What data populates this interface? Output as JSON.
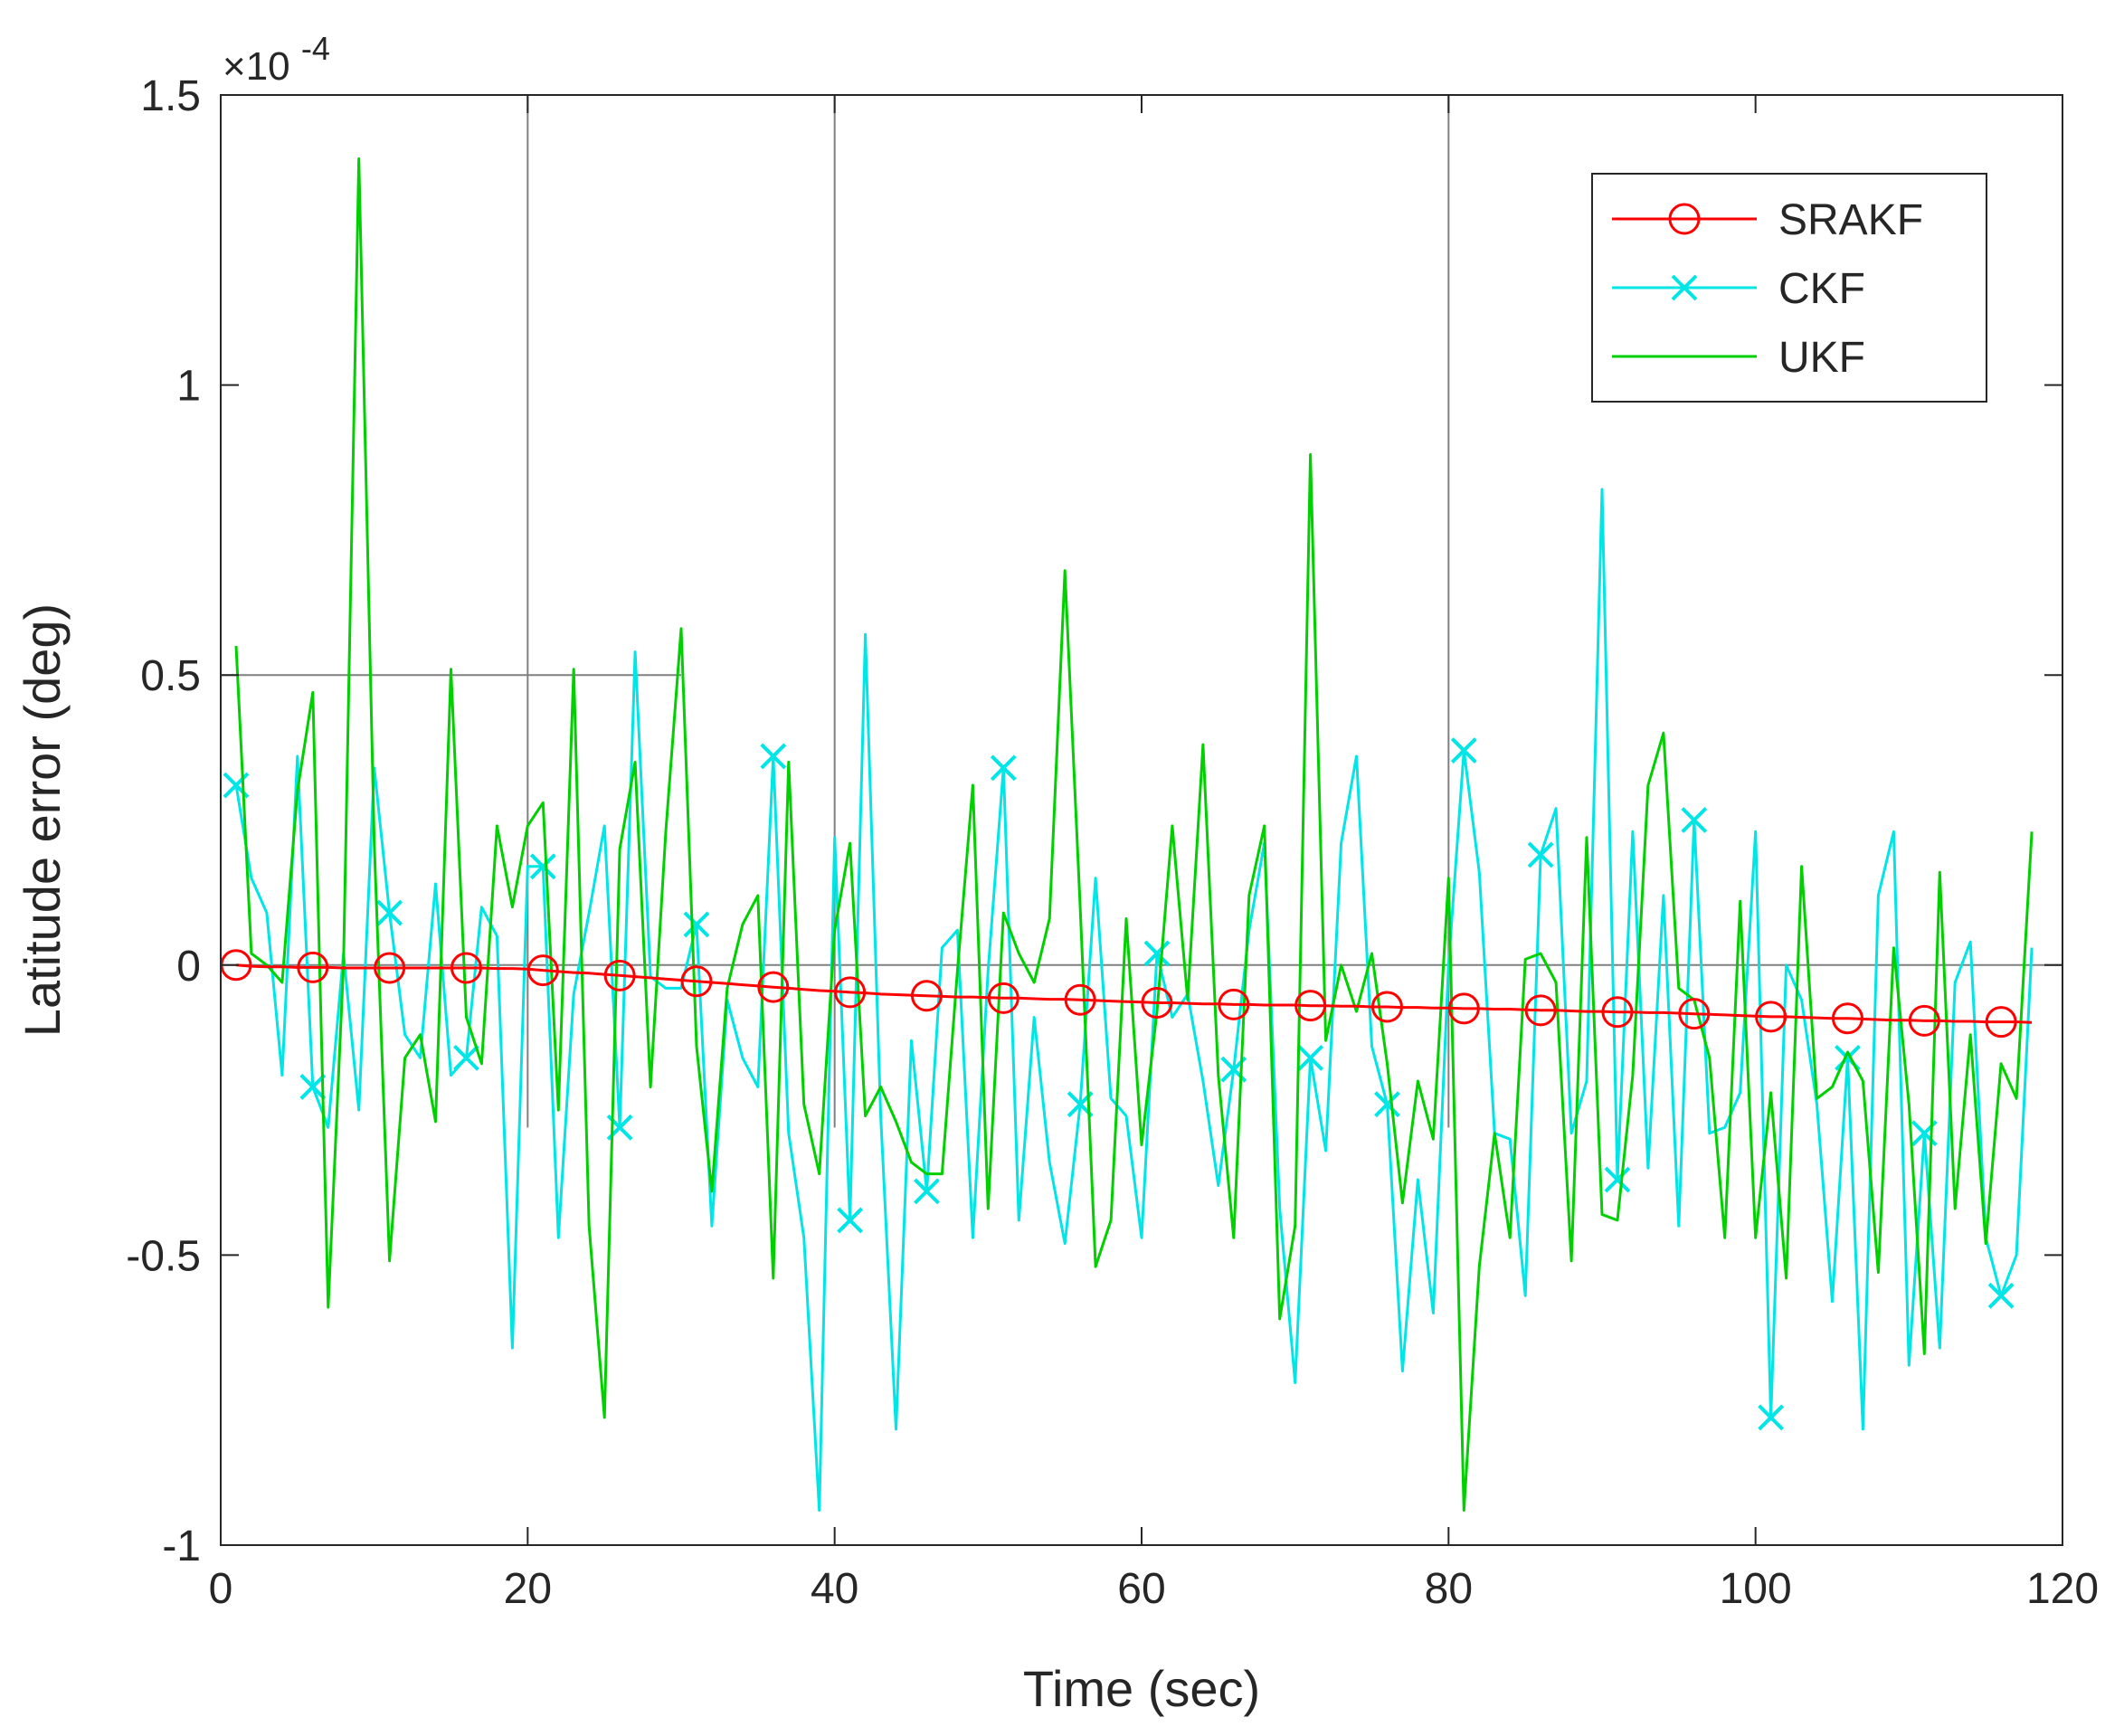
{
  "chart_data": {
    "type": "line",
    "title": "",
    "xlabel": "Time (sec)",
    "ylabel": "Latitude error (deg)",
    "y_exponent_label": "×10",
    "y_exponent_power": "-4",
    "xlim": [
      0,
      120
    ],
    "ylim": [
      -1,
      1.5
    ],
    "xticks": [
      0,
      20,
      40,
      60,
      80,
      100,
      120
    ],
    "yticks": [
      -1,
      -0.5,
      0,
      0.5,
      1,
      1.5
    ],
    "xtick_labels": [
      "0",
      "20",
      "40",
      "60",
      "80",
      "100",
      "120"
    ],
    "ytick_labels": [
      "-1",
      "-0.5",
      "0",
      "0.5",
      "1",
      "1.5"
    ],
    "legend_position": "top-right",
    "colors": {
      "SRAKF": "#ff0000",
      "CKF": "#00e5e5",
      "UKF": "#00d000",
      "axis": "#262626",
      "ref": "#808080"
    },
    "reference_lines": {
      "vertical": [
        {
          "x": 20,
          "y_from": -0.28,
          "y_to": 1.5
        },
        {
          "x": 40,
          "y_from": -0.28,
          "y_to": 1.5
        },
        {
          "x": 80,
          "y_from": -0.28,
          "y_to": 1.5
        }
      ],
      "horizontal": [
        {
          "y": 0.5,
          "x_from": 0,
          "x_to": 30
        },
        {
          "y": 0,
          "x_from": 0,
          "x_to": 120
        }
      ]
    },
    "series": [
      {
        "name": "SRAKF",
        "marker": "circle",
        "marker_every": 5,
        "x": [
          1,
          2,
          3,
          4,
          5,
          6,
          7,
          8,
          9,
          10,
          11,
          12,
          13,
          14,
          15,
          16,
          17,
          18,
          19,
          20,
          21,
          22,
          23,
          24,
          25,
          26,
          27,
          28,
          29,
          30,
          31,
          32,
          33,
          34,
          35,
          36,
          37,
          38,
          39,
          40,
          41,
          42,
          43,
          44,
          45,
          46,
          47,
          48,
          49,
          50,
          51,
          52,
          53,
          54,
          55,
          56,
          57,
          58,
          59,
          60,
          61,
          62,
          63,
          64,
          65,
          66,
          67,
          68,
          69,
          70,
          71,
          72,
          73,
          74,
          75,
          76,
          77,
          78,
          79,
          80,
          81,
          82,
          83,
          84,
          85,
          86,
          87,
          88,
          89,
          90,
          91,
          92,
          93,
          94,
          95,
          96,
          97,
          98,
          99,
          100,
          101,
          102,
          103,
          104,
          105,
          106,
          107,
          108,
          109,
          110,
          111,
          112,
          113,
          114,
          115,
          116,
          117,
          118
        ],
        "values": [
          0.0,
          -0.002,
          -0.003,
          -0.003,
          -0.004,
          -0.004,
          -0.004,
          -0.005,
          -0.005,
          -0.005,
          -0.005,
          -0.005,
          -0.005,
          -0.005,
          -0.005,
          -0.005,
          -0.005,
          -0.006,
          -0.006,
          -0.007,
          -0.009,
          -0.011,
          -0.013,
          -0.014,
          -0.016,
          -0.018,
          -0.02,
          -0.022,
          -0.024,
          -0.026,
          -0.028,
          -0.03,
          -0.032,
          -0.034,
          -0.036,
          -0.038,
          -0.04,
          -0.042,
          -0.044,
          -0.045,
          -0.047,
          -0.048,
          -0.05,
          -0.051,
          -0.052,
          -0.053,
          -0.054,
          -0.055,
          -0.055,
          -0.056,
          -0.057,
          -0.057,
          -0.058,
          -0.059,
          -0.059,
          -0.06,
          -0.061,
          -0.062,
          -0.063,
          -0.064,
          -0.065,
          -0.065,
          -0.066,
          -0.067,
          -0.067,
          -0.068,
          -0.068,
          -0.069,
          -0.069,
          -0.069,
          -0.07,
          -0.07,
          -0.071,
          -0.071,
          -0.072,
          -0.072,
          -0.073,
          -0.073,
          -0.074,
          -0.074,
          -0.075,
          -0.075,
          -0.076,
          -0.076,
          -0.077,
          -0.078,
          -0.078,
          -0.079,
          -0.08,
          -0.08,
          -0.081,
          -0.081,
          -0.082,
          -0.082,
          -0.083,
          -0.084,
          -0.085,
          -0.086,
          -0.087,
          -0.088,
          -0.089,
          -0.089,
          -0.09,
          -0.091,
          -0.092,
          -0.092,
          -0.093,
          -0.094,
          -0.095,
          -0.095,
          -0.096,
          -0.096,
          -0.097,
          -0.097,
          -0.098,
          -0.098,
          -0.098,
          -0.099
        ]
      },
      {
        "name": "CKF",
        "marker": "x",
        "marker_every": 5,
        "x": [
          1,
          2,
          3,
          4,
          5,
          6,
          7,
          8,
          9,
          10,
          11,
          12,
          13,
          14,
          15,
          16,
          17,
          18,
          19,
          20,
          21,
          22,
          23,
          24,
          25,
          26,
          27,
          28,
          29,
          30,
          31,
          32,
          33,
          34,
          35,
          36,
          37,
          38,
          39,
          40,
          41,
          42,
          43,
          44,
          45,
          46,
          47,
          48,
          49,
          50,
          51,
          52,
          53,
          54,
          55,
          56,
          57,
          58,
          59,
          60,
          61,
          62,
          63,
          64,
          65,
          66,
          67,
          68,
          69,
          70,
          71,
          72,
          73,
          74,
          75,
          76,
          77,
          78,
          79,
          80,
          81,
          82,
          83,
          84,
          85,
          86,
          87,
          88,
          89,
          90,
          91,
          92,
          93,
          94,
          95,
          96,
          97,
          98,
          99,
          100,
          101,
          102,
          103,
          104,
          105,
          106,
          107,
          108,
          109,
          110,
          111,
          112,
          113,
          114,
          115,
          116,
          117,
          118
        ],
        "values": [
          0.31,
          0.15,
          0.09,
          -0.19,
          0.36,
          -0.21,
          -0.28,
          0.02,
          -0.25,
          0.34,
          0.09,
          -0.12,
          -0.16,
          0.14,
          -0.19,
          -0.16,
          0.1,
          0.05,
          -0.66,
          0.17,
          0.17,
          -0.47,
          -0.05,
          0.09,
          0.24,
          -0.28,
          0.54,
          -0.02,
          -0.04,
          -0.04,
          0.07,
          -0.45,
          -0.06,
          -0.16,
          -0.21,
          0.36,
          -0.29,
          -0.47,
          -0.94,
          0.22,
          -0.44,
          0.57,
          -0.26,
          -0.8,
          -0.13,
          -0.39,
          0.03,
          0.06,
          -0.47,
          -0.01,
          0.34,
          -0.44,
          -0.09,
          -0.34,
          -0.48,
          -0.24,
          0.15,
          -0.23,
          -0.26,
          -0.47,
          0.02,
          -0.09,
          -0.05,
          -0.2,
          -0.38,
          -0.18,
          0.06,
          0.21,
          -0.42,
          -0.72,
          -0.16,
          -0.32,
          0.21,
          0.36,
          -0.14,
          -0.24,
          -0.7,
          -0.37,
          -0.6,
          0.0,
          0.37,
          0.16,
          -0.29,
          -0.3,
          -0.57,
          0.19,
          0.27,
          -0.29,
          -0.2,
          0.82,
          -0.37,
          0.23,
          -0.35,
          0.12,
          -0.45,
          0.25,
          -0.29,
          -0.28,
          -0.22,
          0.23,
          -0.78,
          0.0,
          -0.06,
          -0.24,
          -0.58,
          -0.16,
          -0.8,
          0.12,
          0.23,
          -0.69,
          -0.29,
          -0.66,
          -0.03,
          0.04,
          -0.47,
          -0.57,
          -0.5,
          0.03
        ]
      },
      {
        "name": "UKF",
        "marker": "none",
        "x": [
          1,
          2,
          3,
          4,
          5,
          6,
          7,
          8,
          9,
          10,
          11,
          12,
          13,
          14,
          15,
          16,
          17,
          18,
          19,
          20,
          21,
          22,
          23,
          24,
          25,
          26,
          27,
          28,
          29,
          30,
          31,
          32,
          33,
          34,
          35,
          36,
          37,
          38,
          39,
          40,
          41,
          42,
          43,
          44,
          45,
          46,
          47,
          48,
          49,
          50,
          51,
          52,
          53,
          54,
          55,
          56,
          57,
          58,
          59,
          60,
          61,
          62,
          63,
          64,
          65,
          66,
          67,
          68,
          69,
          70,
          71,
          72,
          73,
          74,
          75,
          76,
          77,
          78,
          79,
          80,
          81,
          82,
          83,
          84,
          85,
          86,
          87,
          88,
          89,
          90,
          91,
          92,
          93,
          94,
          95,
          96,
          97,
          98,
          99,
          100,
          101,
          102,
          103,
          104,
          105,
          106,
          107,
          108,
          109,
          110,
          111,
          112,
          113,
          114,
          115,
          116,
          117,
          118
        ],
        "values": [
          0.55,
          0.02,
          0.0,
          -0.03,
          0.3,
          0.47,
          -0.59,
          0.0,
          1.39,
          0.21,
          -0.51,
          -0.16,
          -0.12,
          -0.27,
          0.51,
          -0.09,
          -0.17,
          0.24,
          0.1,
          0.24,
          0.28,
          -0.25,
          0.51,
          -0.45,
          -0.78,
          0.2,
          0.35,
          -0.21,
          0.23,
          0.58,
          -0.14,
          -0.39,
          -0.04,
          0.07,
          0.12,
          -0.54,
          0.35,
          -0.24,
          -0.36,
          0.06,
          0.21,
          -0.26,
          -0.21,
          -0.27,
          -0.34,
          -0.36,
          -0.36,
          -0.01,
          0.31,
          -0.42,
          0.09,
          0.02,
          -0.03,
          0.08,
          0.68,
          0.1,
          -0.52,
          -0.44,
          0.08,
          -0.31,
          -0.08,
          0.24,
          -0.06,
          0.38,
          -0.19,
          -0.47,
          0.12,
          0.24,
          -0.61,
          -0.45,
          0.88,
          -0.13,
          0.0,
          -0.08,
          0.02,
          -0.17,
          -0.41,
          -0.2,
          -0.3,
          0.15,
          -0.94,
          -0.52,
          -0.29,
          -0.47,
          0.01,
          0.02,
          -0.03,
          -0.51,
          0.22,
          -0.43,
          -0.44,
          -0.19,
          0.31,
          0.4,
          -0.04,
          -0.06,
          -0.16,
          -0.47,
          0.11,
          -0.47,
          -0.22,
          -0.54,
          0.17,
          -0.23,
          -0.21,
          -0.15,
          -0.2,
          -0.53,
          0.03,
          -0.24,
          -0.67,
          0.16,
          -0.42,
          -0.12,
          -0.48,
          -0.17,
          -0.23,
          0.23
        ]
      }
    ]
  }
}
